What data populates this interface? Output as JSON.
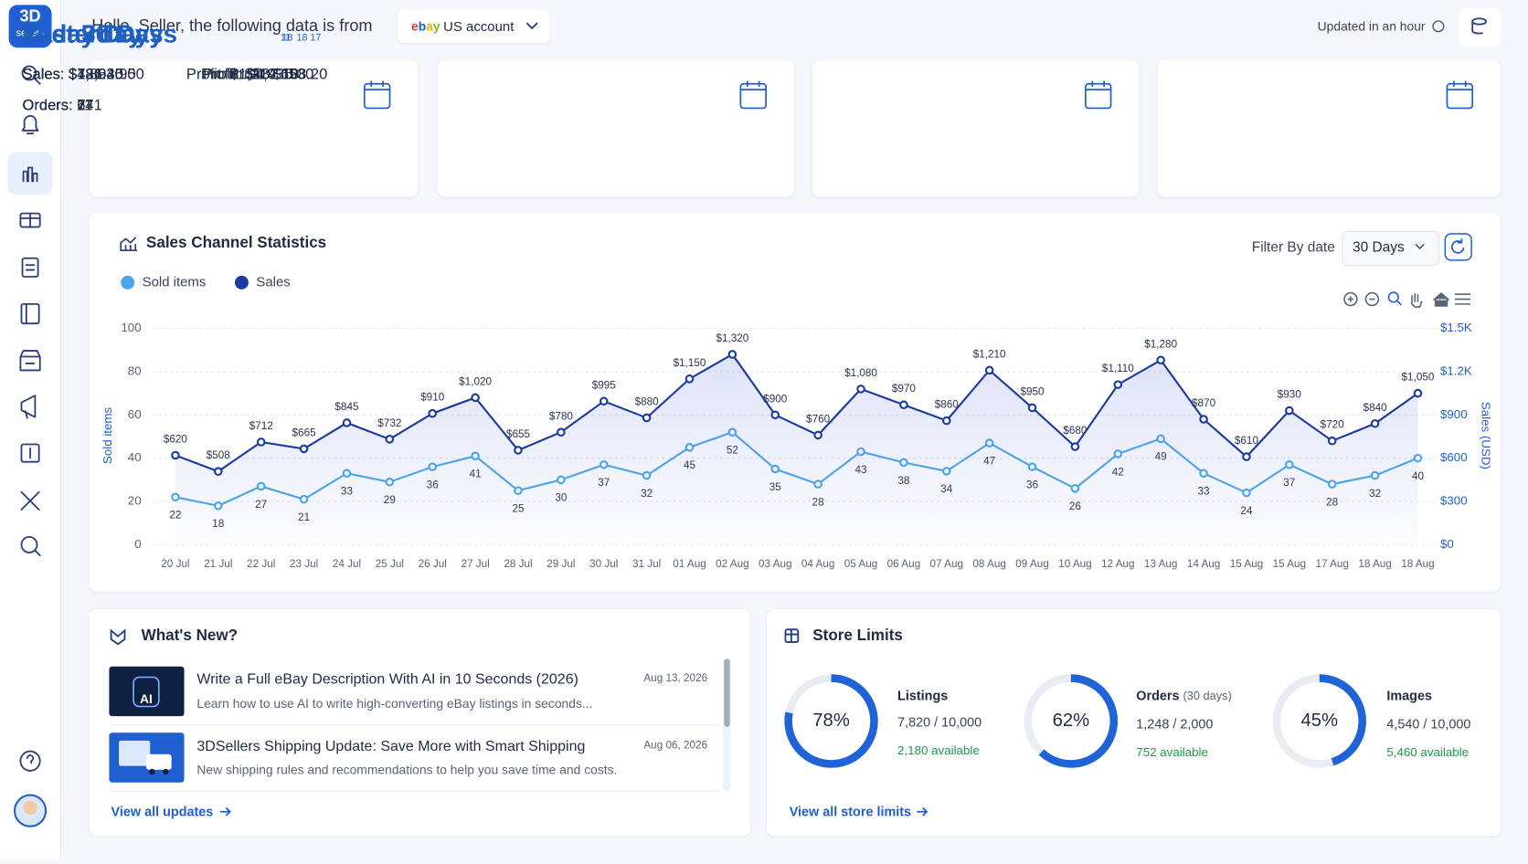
{
  "sidebar": {
    "logo_top": "3D",
    "logo_bottom": "sellers"
  },
  "header": {
    "greeting": "Hello, Seller, the following data is from",
    "account_brand": "ebay",
    "account": "US account",
    "updated": "Updated in an hour"
  },
  "cards": [
    {
      "title": "Today",
      "day": "18",
      "sales": "Sales: $486.40",
      "profit": "Profit: $132.10",
      "orders": "Orders: 7"
    },
    {
      "title": "Yesterday",
      "day": "17",
      "sales": "Sales: $721.35",
      "profit": "Profit: $198.20",
      "orders": "Orders: 11"
    },
    {
      "title": "Last 7 Days",
      "day": "11",
      "sales": "Sales: $4,862.90",
      "profit": "Profit: $1,214.65",
      "orders": "Orders: 67"
    },
    {
      "title": "Last 30 Days",
      "day": "18",
      "sales": "Sales: $18,940.50",
      "profit": "Profit: $4,936.30",
      "orders": "Orders: 241"
    }
  ],
  "chart_panel": {
    "title": "Sales Channel Statistics",
    "filter_label": "Filter By date",
    "filter_value": "30 Days"
  },
  "chart_data": {
    "type": "line",
    "categories": [
      "20 Jul",
      "21 Jul",
      "22 Jul",
      "23 Jul",
      "24 Jul",
      "25 Jul",
      "26 Jul",
      "27 Jul",
      "28 Jul",
      "29 Jul",
      "30 Jul",
      "31 Jul",
      "01 Aug",
      "02 Aug",
      "03 Aug",
      "04 Aug",
      "05 Aug",
      "06 Aug",
      "07 Aug",
      "08 Aug",
      "09 Aug",
      "10 Aug",
      "12 Aug",
      "13 Aug",
      "14 Aug",
      "15 Aug",
      "15 Aug",
      "17 Aug",
      "18 Aug",
      "18 Aug"
    ],
    "ylabel": "Sold items",
    "y2label": "Sales (USD)",
    "ylim": [
      0,
      100
    ],
    "yticks": [
      0,
      20,
      40,
      60,
      80,
      100
    ],
    "y2lim": [
      0,
      1500
    ],
    "y2ticks": [
      {
        "value": 0,
        "label": "$0"
      },
      {
        "value": 300,
        "label": "$300"
      },
      {
        "value": 600,
        "label": "$600"
      },
      {
        "value": 900,
        "label": "$900"
      },
      {
        "value": 1200,
        "label": "$1.2K"
      },
      {
        "value": 1500,
        "label": "$1.5K"
      }
    ],
    "grid": true,
    "series": [
      {
        "name": "Sold items",
        "color": "#4ba7ea",
        "values": [
          22,
          18,
          27,
          21,
          33,
          29,
          36,
          41,
          25,
          30,
          37,
          32,
          45,
          52,
          35,
          28,
          43,
          38,
          34,
          47,
          36,
          26,
          42,
          49,
          33,
          24,
          37,
          28,
          32,
          40
        ]
      },
      {
        "name": "Sales",
        "color": "#1b3b9e",
        "axis": "y2",
        "values": [
          620,
          508,
          712,
          665,
          845,
          732,
          910,
          1020,
          655,
          780,
          995,
          880,
          1150,
          1320,
          900,
          760,
          1080,
          970,
          860,
          1210,
          950,
          680,
          1110,
          1280,
          870,
          610,
          930,
          720,
          840,
          1050
        ],
        "value_labels": [
          "$620",
          "$508",
          "$712",
          "$665",
          "$845",
          "$732",
          "$910",
          "$1,020",
          "$655",
          "$780",
          "$995",
          "$880",
          "$1,150",
          "$1,320",
          "$900",
          "$760",
          "$1,080",
          "$970",
          "$860",
          "$1,210",
          "$950",
          "$680",
          "$1,110",
          "$1,280",
          "$870",
          "$610",
          "$930",
          "$720",
          "$840",
          "$1,050"
        ]
      }
    ]
  },
  "whats_new": {
    "title": "What's New?",
    "items": [
      {
        "thumb_text": "AI",
        "title": "Write a Full eBay Description With AI in 10 Seconds (2026)",
        "date": "Aug 13, 2026",
        "desc": "Learn how to use AI to write high-converting eBay listings in seconds..."
      },
      {
        "title": "3DSellers Shipping Update: Save More with Smart Shipping",
        "date": "Aug 06, 2026",
        "desc": "New shipping rules and recommendations to help you save time and costs."
      }
    ],
    "link": "View all updates"
  },
  "store_limits": {
    "title": "Store Limits",
    "items": [
      {
        "percent": 78,
        "percent_label": "78%",
        "name": "Listings",
        "usage": "7,820 / 10,000",
        "available": "2,180 available"
      },
      {
        "percent": 62,
        "percent_label": "62%",
        "name": "Orders",
        "name_note": "(30 days)",
        "usage": "1,248 / 2,000",
        "available": "752 available"
      },
      {
        "percent": 45,
        "percent_label": "45%",
        "name": "Images",
        "usage": "4,540 / 10,000",
        "available": "5,460 available"
      }
    ],
    "link": "View all store limits"
  }
}
